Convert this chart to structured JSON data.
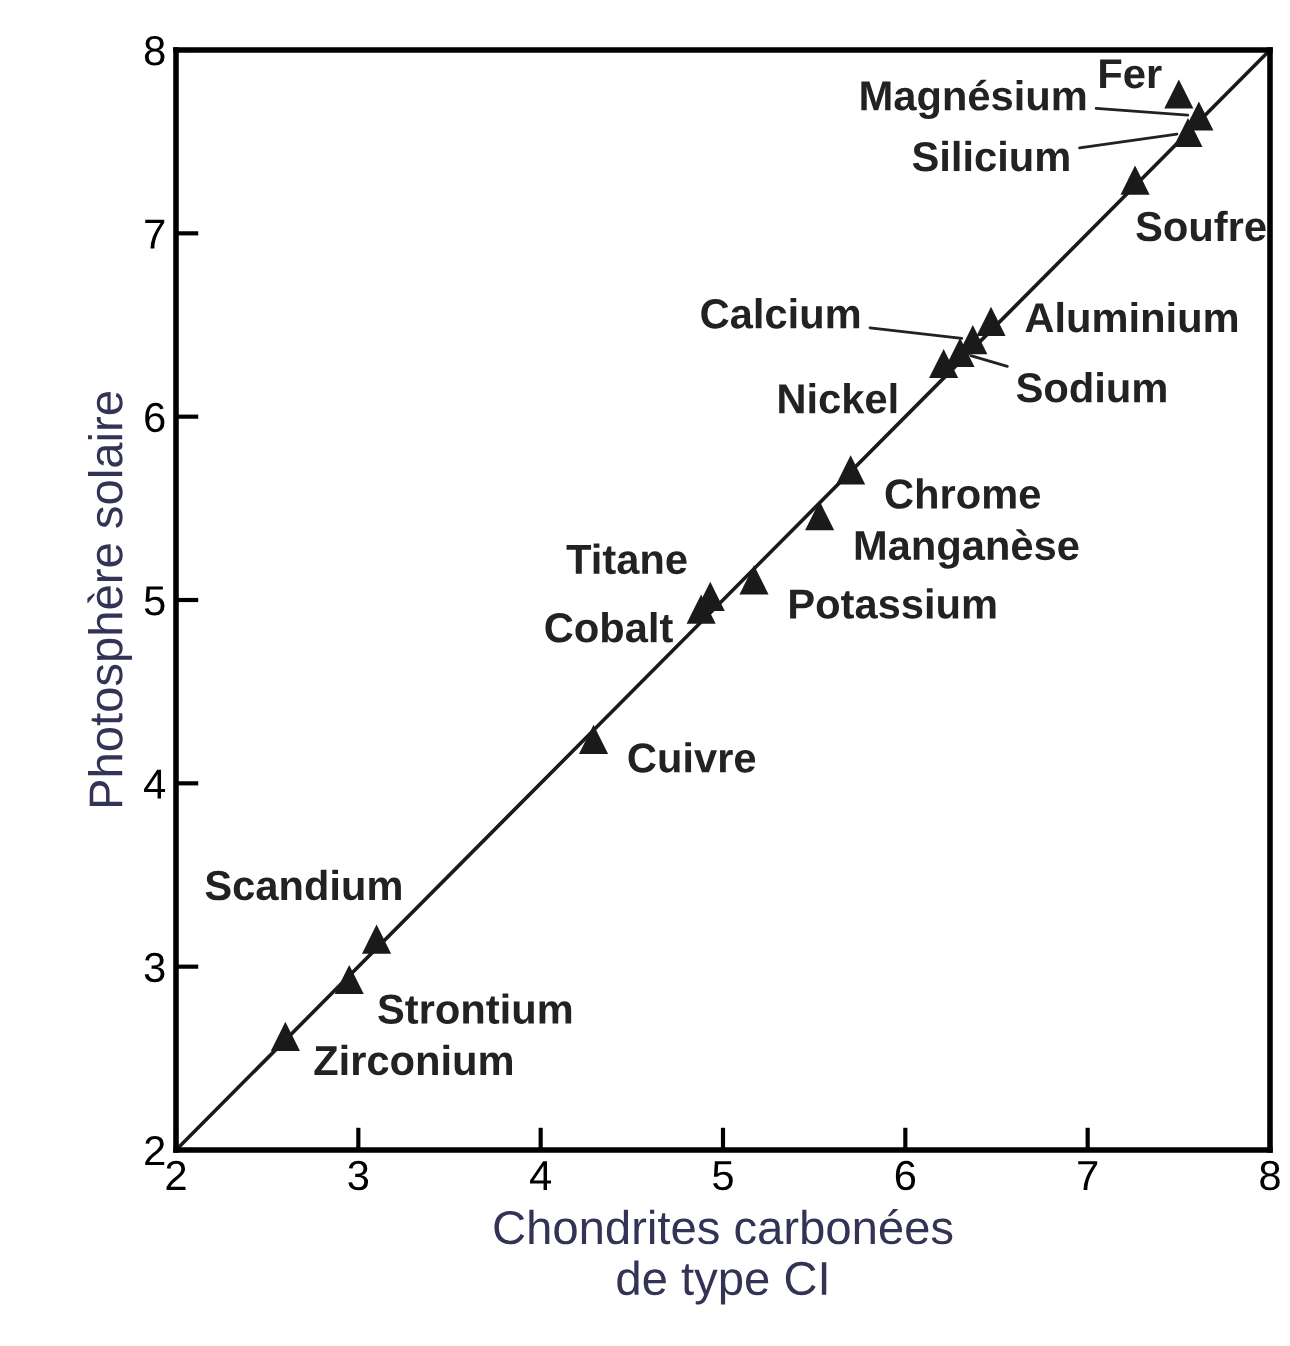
{
  "chart_data": {
    "type": "scatter",
    "xlabel": "Chondrites carbonées\nde type CI",
    "ylabel": "Photosphère solaire",
    "xlim": [
      2,
      8
    ],
    "ylim": [
      2,
      8
    ],
    "xticks": [
      2,
      3,
      4,
      5,
      6,
      7,
      8
    ],
    "yticks": [
      2,
      3,
      4,
      5,
      6,
      7,
      8
    ],
    "grid": false,
    "marker": "triangle",
    "series": [
      {
        "color": "#1a1a1a",
        "x": [
          7.5,
          7.61,
          7.55,
          7.26,
          6.47,
          6.37,
          6.3,
          6.21,
          5.7,
          5.53,
          5.17,
          4.93,
          4.88,
          4.29,
          3.1,
          2.95,
          2.6
        ],
        "values": [
          7.76,
          7.64,
          7.55,
          7.29,
          6.52,
          6.42,
          6.35,
          6.29,
          5.71,
          5.46,
          5.11,
          5.02,
          4.95,
          4.24,
          3.15,
          2.93,
          2.62
        ]
      },
      {
        "type": "line",
        "color": "#1a1a1a",
        "x": [
          2,
          8
        ],
        "values": [
          2,
          8
        ],
        "marker": "none"
      }
    ],
    "annotations": [
      {
        "text": "Fer",
        "x": 7.5,
        "y": 7.76
      },
      {
        "text": "Magnésium",
        "x": 7.61,
        "y": 7.64
      },
      {
        "text": "Silicium",
        "x": 7.55,
        "y": 7.55
      },
      {
        "text": "Soufre",
        "x": 7.26,
        "y": 7.29
      },
      {
        "text": "Aluminium",
        "x": 6.47,
        "y": 6.52
      },
      {
        "text": "Calcium",
        "x": 6.37,
        "y": 6.42
      },
      {
        "text": "Sodium",
        "x": 6.3,
        "y": 6.35
      },
      {
        "text": "Nickel",
        "x": 6.21,
        "y": 6.29
      },
      {
        "text": "Chrome",
        "x": 5.7,
        "y": 5.71
      },
      {
        "text": "Manganèse",
        "x": 5.53,
        "y": 5.46
      },
      {
        "text": "Potassium",
        "x": 5.17,
        "y": 5.11
      },
      {
        "text": "Titane",
        "x": 4.93,
        "y": 5.02
      },
      {
        "text": "Cobalt",
        "x": 4.88,
        "y": 4.95
      },
      {
        "text": "Cuivre",
        "x": 4.29,
        "y": 4.24
      },
      {
        "text": "Scandium",
        "x": 3.1,
        "y": 3.15
      },
      {
        "text": "Strontium",
        "x": 2.95,
        "y": 2.93
      },
      {
        "text": "Zirconium",
        "x": 2.6,
        "y": 2.62
      }
    ]
  }
}
